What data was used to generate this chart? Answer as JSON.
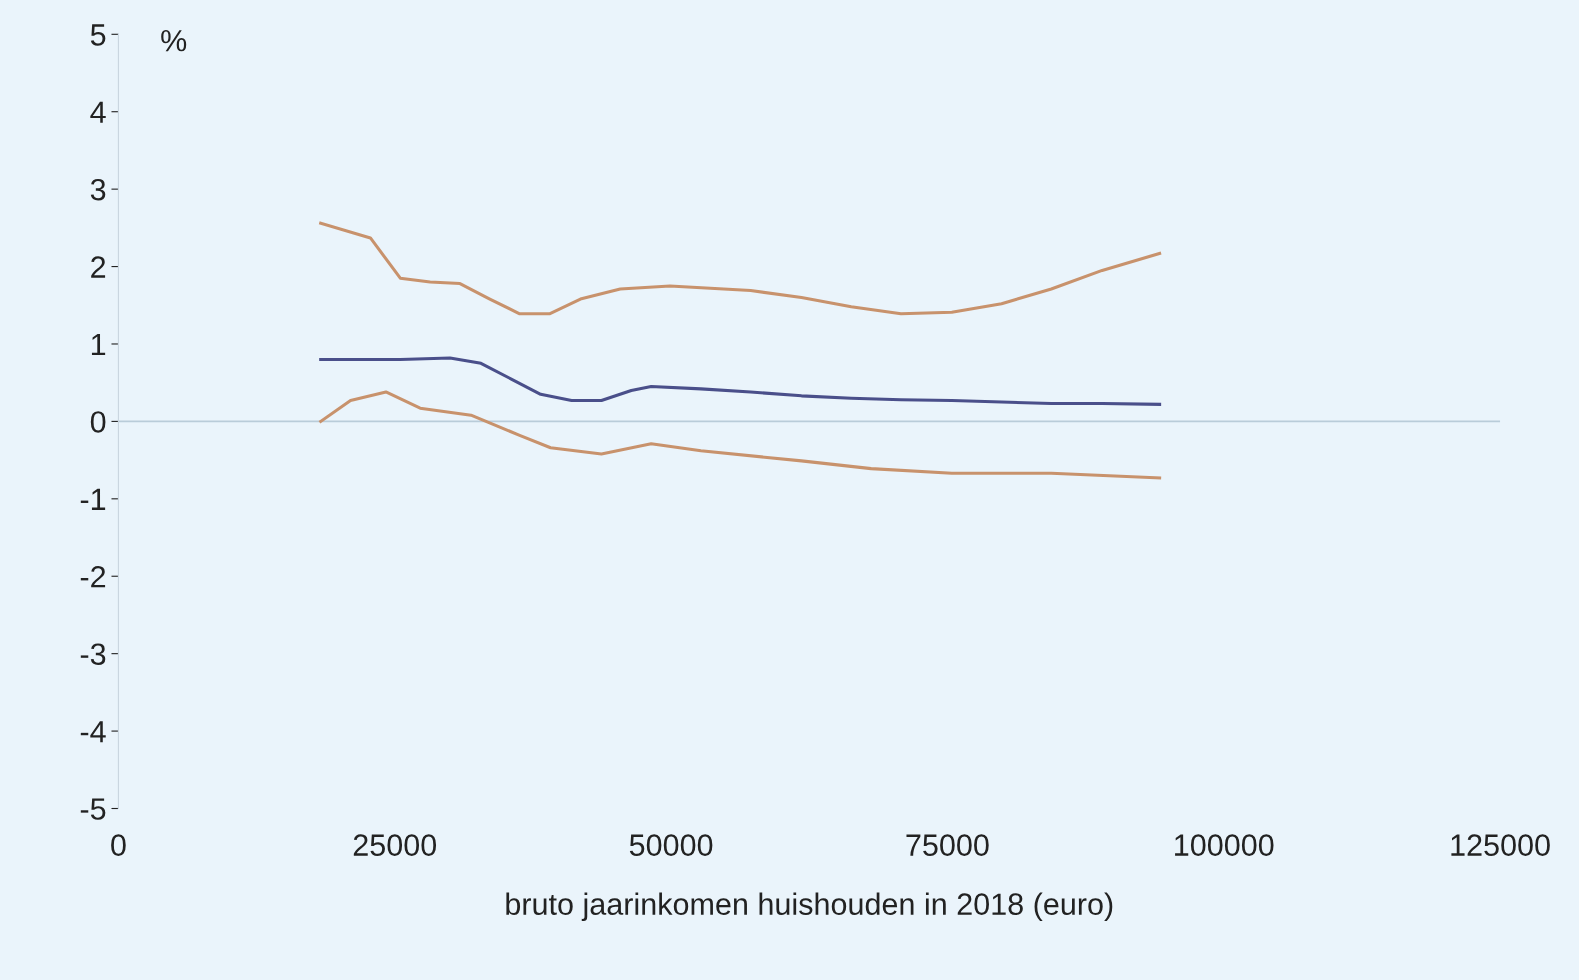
{
  "chart_data": {
    "type": "line",
    "xlabel": "bruto jaarinkomen huishouden in 2018 (euro)",
    "ylabel": "%",
    "xlim": [
      0,
      125000
    ],
    "xticks": [
      0,
      25000,
      50000,
      75000,
      100000,
      125000
    ],
    "ylim": [
      -5,
      5
    ],
    "yticks": [
      -5,
      -4,
      -3,
      -2,
      -1,
      0,
      1,
      2,
      3,
      4,
      5
    ],
    "grid": false,
    "legend": false,
    "marker": "none",
    "line_style": "solid",
    "ref_lines": [
      {
        "axis": "y",
        "value": 0,
        "color": "#b9ccd9"
      }
    ],
    "series": [
      {
        "color": "#c8926c",
        "x": [
          18300,
          22800,
          25500,
          28200,
          30900,
          33600,
          36300,
          39000,
          41800,
          45400,
          49900,
          57200,
          61800,
          66300,
          70800,
          75400,
          79900,
          84400,
          89000,
          94200
        ],
        "values": [
          2.56,
          2.37,
          1.85,
          1.8,
          1.78,
          1.58,
          1.39,
          1.39,
          1.58,
          1.71,
          1.75,
          1.69,
          1.6,
          1.48,
          1.39,
          1.41,
          1.52,
          1.71,
          1.95,
          2.17
        ]
      },
      {
        "color": "#4a4f8a",
        "x": [
          18300,
          21000,
          25500,
          30000,
          32800,
          35500,
          38200,
          41000,
          43700,
          46400,
          48200,
          52700,
          57200,
          61800,
          66300,
          70800,
          75400,
          79900,
          84400,
          89000,
          94200
        ],
        "values": [
          0.8,
          0.8,
          0.8,
          0.82,
          0.75,
          0.55,
          0.35,
          0.27,
          0.27,
          0.4,
          0.45,
          0.42,
          0.38,
          0.33,
          0.3,
          0.28,
          0.27,
          0.25,
          0.23,
          0.23,
          0.22
        ]
      },
      {
        "color": "#c8926c",
        "x": [
          18300,
          21000,
          24200,
          27300,
          31900,
          36300,
          39100,
          43700,
          48200,
          52700,
          61800,
          68100,
          75400,
          84400,
          94200
        ],
        "values": [
          0,
          0.27,
          0.38,
          0.17,
          0.08,
          -0.18,
          -0.34,
          -0.42,
          -0.29,
          -0.38,
          -0.51,
          -0.61,
          -0.67,
          -0.67,
          -0.73
        ]
      }
    ]
  }
}
